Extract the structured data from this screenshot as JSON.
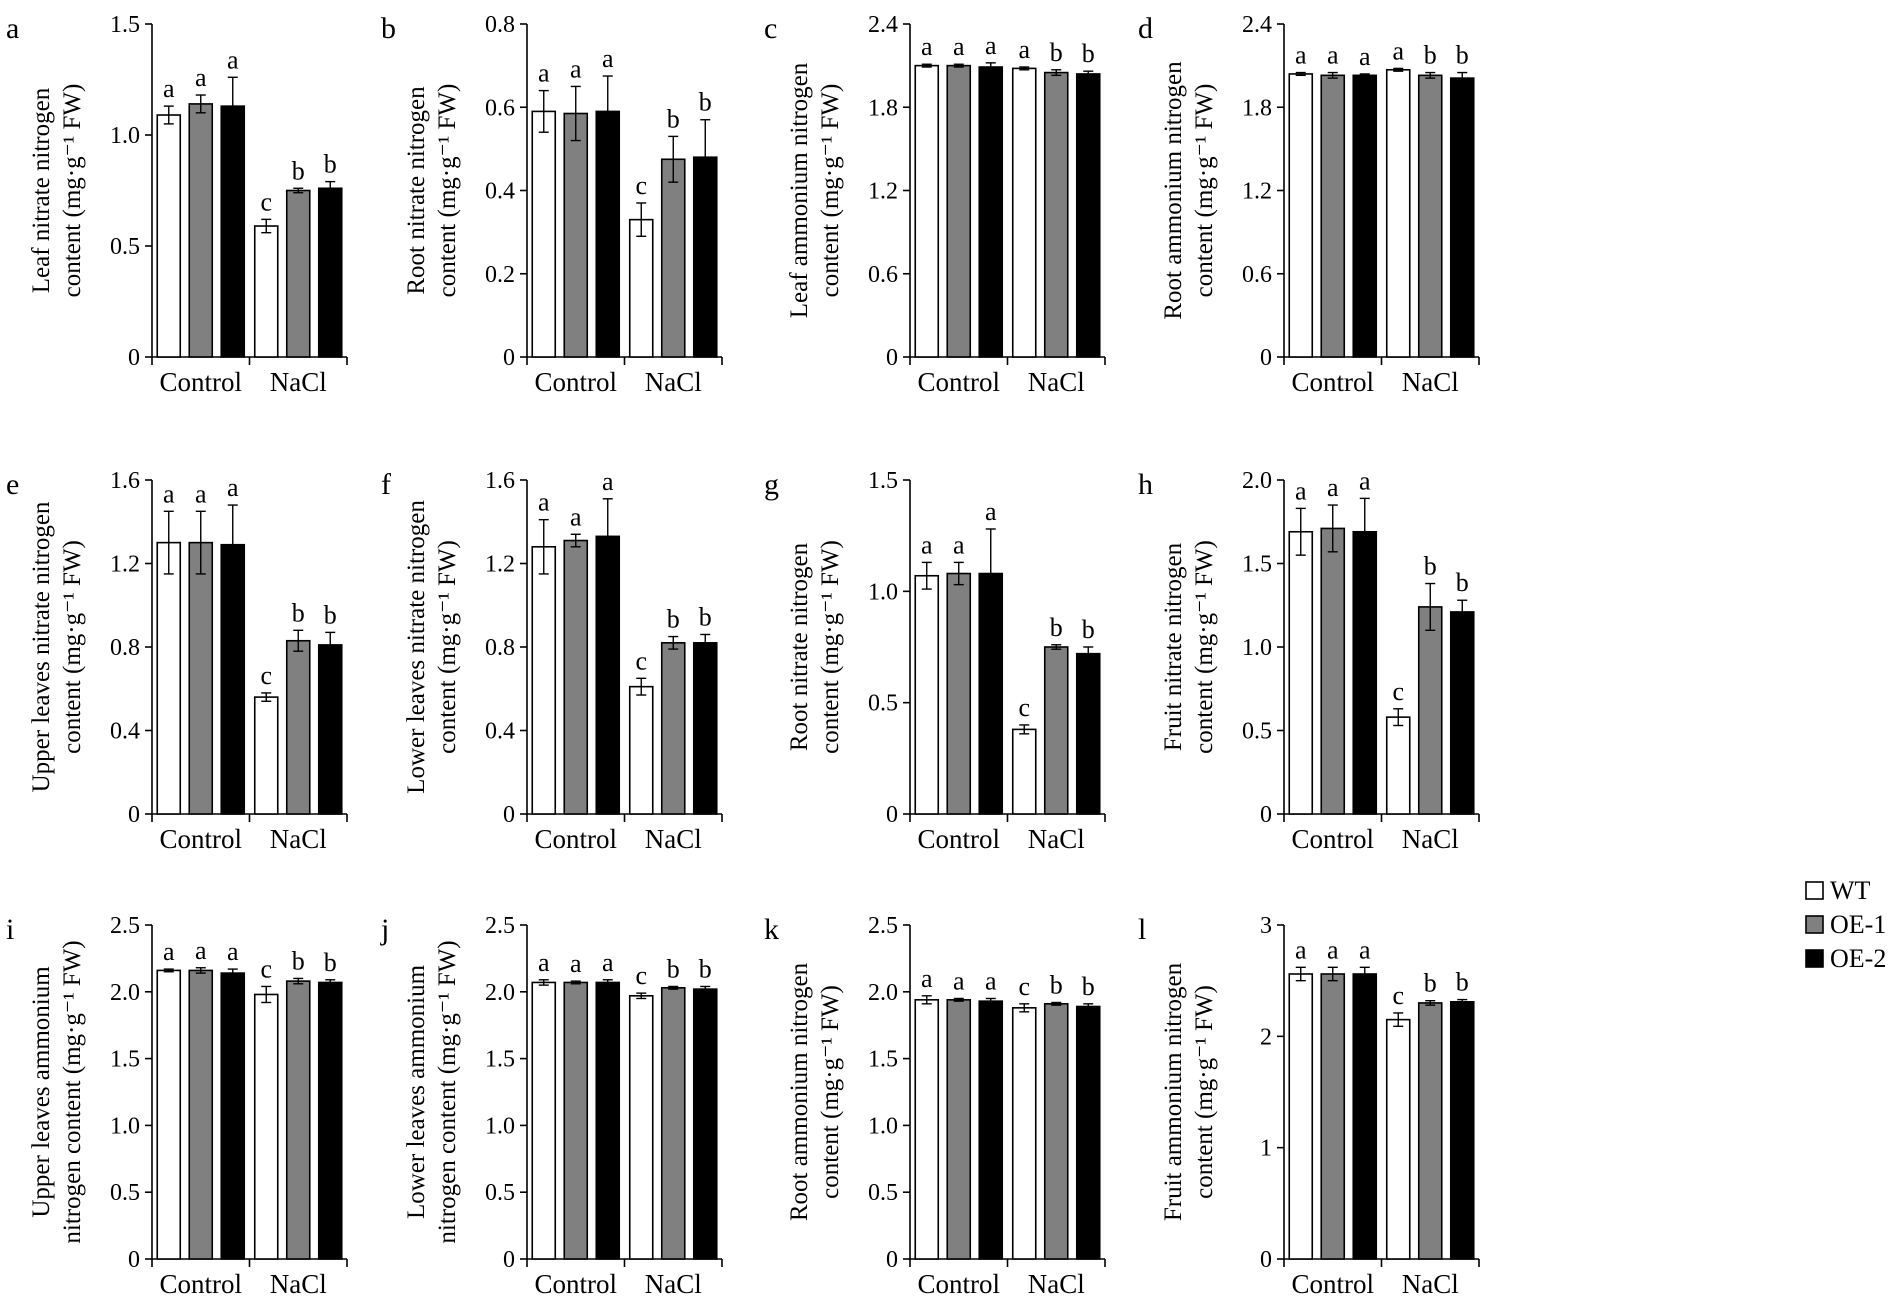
{
  "figure": {
    "legend": [
      {
        "label": "WT",
        "color": "#ffffff"
      },
      {
        "label": "OE-1",
        "color": "#808080"
      },
      {
        "label": "OE-2",
        "color": "#000000"
      }
    ]
  },
  "chart_data": [
    {
      "panel": "a",
      "type": "bar",
      "ylabel": [
        "Leaf nitrate nitrogen",
        "content (mg·g⁻¹ FW)"
      ],
      "ylim": [
        0,
        1.5
      ],
      "yticks": [
        "0",
        "0.5",
        "1.0",
        "1.5"
      ],
      "categories": [
        "Control",
        "NaCl"
      ],
      "series": [
        {
          "name": "WT",
          "values": [
            1.09,
            0.59
          ],
          "errors": [
            0.04,
            0.03
          ]
        },
        {
          "name": "OE-1",
          "values": [
            1.14,
            0.75
          ],
          "errors": [
            0.04,
            0.01
          ]
        },
        {
          "name": "OE-2",
          "values": [
            1.13,
            0.76
          ],
          "errors": [
            0.13,
            0.03
          ]
        }
      ],
      "letters": [
        [
          "a",
          "a",
          "a"
        ],
        [
          "c",
          "b",
          "b"
        ]
      ]
    },
    {
      "panel": "b",
      "type": "bar",
      "ylabel": [
        "Root nitrate nitrogen",
        "content (mg·g⁻¹ FW)"
      ],
      "ylim": [
        0,
        0.8
      ],
      "yticks": [
        "0",
        "0.2",
        "0.4",
        "0.6",
        "0.8"
      ],
      "categories": [
        "Control",
        "NaCl"
      ],
      "series": [
        {
          "name": "WT",
          "values": [
            0.59,
            0.33
          ],
          "errors": [
            0.05,
            0.04
          ]
        },
        {
          "name": "OE-1",
          "values": [
            0.585,
            0.475
          ],
          "errors": [
            0.065,
            0.055
          ]
        },
        {
          "name": "OE-2",
          "values": [
            0.59,
            0.48
          ],
          "errors": [
            0.085,
            0.09
          ]
        }
      ],
      "letters": [
        [
          "a",
          "a",
          "a"
        ],
        [
          "c",
          "b",
          "b"
        ]
      ]
    },
    {
      "panel": "c",
      "type": "bar",
      "ylabel": [
        "Leaf ammonium nitrogen",
        "content (mg·g⁻¹ FW)"
      ],
      "ylim": [
        0,
        2.4
      ],
      "yticks": [
        "0",
        "0.6",
        "1.2",
        "1.8",
        "2.4"
      ],
      "categories": [
        "Control",
        "NaCl"
      ],
      "series": [
        {
          "name": "WT",
          "values": [
            2.1,
            2.08
          ],
          "errors": [
            0.01,
            0.01
          ]
        },
        {
          "name": "OE-1",
          "values": [
            2.1,
            2.05
          ],
          "errors": [
            0.01,
            0.02
          ]
        },
        {
          "name": "OE-2",
          "values": [
            2.09,
            2.04
          ],
          "errors": [
            0.03,
            0.02
          ]
        }
      ],
      "letters": [
        [
          "a",
          "a",
          "a"
        ],
        [
          "a",
          "b",
          "b"
        ]
      ]
    },
    {
      "panel": "d",
      "type": "bar",
      "ylabel": [
        "Root ammonium nitrogen",
        "content (mg·g⁻¹ FW)"
      ],
      "ylim": [
        0,
        2.4
      ],
      "yticks": [
        "0",
        "0.6",
        "1.2",
        "1.8",
        "2.4"
      ],
      "categories": [
        "Control",
        "NaCl"
      ],
      "series": [
        {
          "name": "WT",
          "values": [
            2.04,
            2.07
          ],
          "errors": [
            0.01,
            0.01
          ]
        },
        {
          "name": "OE-1",
          "values": [
            2.03,
            2.03
          ],
          "errors": [
            0.02,
            0.02
          ]
        },
        {
          "name": "OE-2",
          "values": [
            2.03,
            2.01
          ],
          "errors": [
            0.01,
            0.04
          ]
        }
      ],
      "letters": [
        [
          "a",
          "a",
          "a"
        ],
        [
          "a",
          "b",
          "b"
        ]
      ]
    },
    {
      "panel": "e",
      "type": "bar",
      "ylabel": [
        "Upper leaves nitrate nitrogen",
        "content (mg·g⁻¹ FW)"
      ],
      "ylim": [
        0,
        1.6
      ],
      "yticks": [
        "0",
        "0.4",
        "0.8",
        "1.2",
        "1.6"
      ],
      "categories": [
        "Control",
        "NaCl"
      ],
      "series": [
        {
          "name": "WT",
          "values": [
            1.3,
            0.56
          ],
          "errors": [
            0.15,
            0.02
          ]
        },
        {
          "name": "OE-1",
          "values": [
            1.3,
            0.83
          ],
          "errors": [
            0.15,
            0.05
          ]
        },
        {
          "name": "OE-2",
          "values": [
            1.29,
            0.81
          ],
          "errors": [
            0.19,
            0.06
          ]
        }
      ],
      "letters": [
        [
          "a",
          "a",
          "a"
        ],
        [
          "c",
          "b",
          "b"
        ]
      ]
    },
    {
      "panel": "f",
      "type": "bar",
      "ylabel": [
        "Lower leaves nitrate nitrogen",
        "content (mg·g⁻¹ FW)"
      ],
      "ylim": [
        0,
        1.6
      ],
      "yticks": [
        "0",
        "0.4",
        "0.8",
        "1.2",
        "1.6"
      ],
      "categories": [
        "Control",
        "NaCl"
      ],
      "series": [
        {
          "name": "WT",
          "values": [
            1.28,
            0.61
          ],
          "errors": [
            0.13,
            0.04
          ]
        },
        {
          "name": "OE-1",
          "values": [
            1.31,
            0.82
          ],
          "errors": [
            0.03,
            0.03
          ]
        },
        {
          "name": "OE-2",
          "values": [
            1.33,
            0.82
          ],
          "errors": [
            0.18,
            0.04
          ]
        }
      ],
      "letters": [
        [
          "a",
          "a",
          "a"
        ],
        [
          "c",
          "b",
          "b"
        ]
      ]
    },
    {
      "panel": "g",
      "type": "bar",
      "ylabel": [
        "Root nitrate nitrogen",
        "content (mg·g⁻¹ FW)"
      ],
      "ylim": [
        0,
        1.5
      ],
      "yticks": [
        "0",
        "0.5",
        "1.0",
        "1.5"
      ],
      "categories": [
        "Control",
        "NaCl"
      ],
      "series": [
        {
          "name": "WT",
          "values": [
            1.07,
            0.38
          ],
          "errors": [
            0.06,
            0.02
          ]
        },
        {
          "name": "OE-1",
          "values": [
            1.08,
            0.75
          ],
          "errors": [
            0.05,
            0.01
          ]
        },
        {
          "name": "OE-2",
          "values": [
            1.08,
            0.72
          ],
          "errors": [
            0.2,
            0.03
          ]
        }
      ],
      "letters": [
        [
          "a",
          "a",
          "a"
        ],
        [
          "c",
          "b",
          "b"
        ]
      ]
    },
    {
      "panel": "h",
      "type": "bar",
      "ylabel": [
        "Fruit nitrate nitrogen",
        "content (mg·g⁻¹ FW)"
      ],
      "ylim": [
        0,
        2.0
      ],
      "yticks": [
        "0",
        "0.5",
        "1.0",
        "1.5",
        "2.0"
      ],
      "categories": [
        "Control",
        "NaCl"
      ],
      "series": [
        {
          "name": "WT",
          "values": [
            1.69,
            0.58
          ],
          "errors": [
            0.14,
            0.05
          ]
        },
        {
          "name": "OE-1",
          "values": [
            1.71,
            1.24
          ],
          "errors": [
            0.14,
            0.14
          ]
        },
        {
          "name": "OE-2",
          "values": [
            1.69,
            1.21
          ],
          "errors": [
            0.2,
            0.07
          ]
        }
      ],
      "letters": [
        [
          "a",
          "a",
          "a"
        ],
        [
          "c",
          "b",
          "b"
        ]
      ]
    },
    {
      "panel": "i",
      "type": "bar",
      "ylabel": [
        "Upper leaves ammonium",
        "nitrogen content (mg·g⁻¹ FW)"
      ],
      "ylim": [
        0,
        2.5
      ],
      "yticks": [
        "0",
        "0.5",
        "1.0",
        "1.5",
        "2.0",
        "2.5"
      ],
      "categories": [
        "Control",
        "NaCl"
      ],
      "series": [
        {
          "name": "WT",
          "values": [
            2.16,
            1.98
          ],
          "errors": [
            0.01,
            0.06
          ]
        },
        {
          "name": "OE-1",
          "values": [
            2.16,
            2.08
          ],
          "errors": [
            0.02,
            0.02
          ]
        },
        {
          "name": "OE-2",
          "values": [
            2.14,
            2.07
          ],
          "errors": [
            0.03,
            0.02
          ]
        }
      ],
      "letters": [
        [
          "a",
          "a",
          "a"
        ],
        [
          "c",
          "b",
          "b"
        ]
      ]
    },
    {
      "panel": "j",
      "type": "bar",
      "ylabel": [
        "Lower leaves ammonium",
        "nitrogen content (mg·g⁻¹ FW)"
      ],
      "ylim": [
        0,
        2.5
      ],
      "yticks": [
        "0",
        "0.5",
        "1.0",
        "1.5",
        "2.0",
        "2.5"
      ],
      "categories": [
        "Control",
        "NaCl"
      ],
      "series": [
        {
          "name": "WT",
          "values": [
            2.07,
            1.97
          ],
          "errors": [
            0.02,
            0.02
          ]
        },
        {
          "name": "OE-1",
          "values": [
            2.07,
            2.03
          ],
          "errors": [
            0.01,
            0.01
          ]
        },
        {
          "name": "OE-2",
          "values": [
            2.07,
            2.02
          ],
          "errors": [
            0.02,
            0.02
          ]
        }
      ],
      "letters": [
        [
          "a",
          "a",
          "a"
        ],
        [
          "c",
          "b",
          "b"
        ]
      ]
    },
    {
      "panel": "k",
      "type": "bar",
      "ylabel": [
        "Root ammonium nitrogen",
        "content (mg·g⁻¹ FW)"
      ],
      "ylim": [
        0,
        2.5
      ],
      "yticks": [
        "0",
        "0.5",
        "1.0",
        "1.5",
        "2.0",
        "2.5"
      ],
      "categories": [
        "Control",
        "NaCl"
      ],
      "series": [
        {
          "name": "WT",
          "values": [
            1.94,
            1.88
          ],
          "errors": [
            0.03,
            0.03
          ]
        },
        {
          "name": "OE-1",
          "values": [
            1.94,
            1.91
          ],
          "errors": [
            0.01,
            0.01
          ]
        },
        {
          "name": "OE-2",
          "values": [
            1.93,
            1.89
          ],
          "errors": [
            0.02,
            0.02
          ]
        }
      ],
      "letters": [
        [
          "a",
          "a",
          "a"
        ],
        [
          "c",
          "b",
          "b"
        ]
      ]
    },
    {
      "panel": "l",
      "type": "bar",
      "ylabel": [
        "Fruit ammonium nitrogen",
        "content (mg·g⁻¹ FW)"
      ],
      "ylim": [
        0,
        3
      ],
      "yticks": [
        "0",
        "1",
        "2",
        "3"
      ],
      "categories": [
        "Control",
        "NaCl"
      ],
      "series": [
        {
          "name": "WT",
          "values": [
            2.56,
            2.15
          ],
          "errors": [
            0.06,
            0.06
          ]
        },
        {
          "name": "OE-1",
          "values": [
            2.56,
            2.3
          ],
          "errors": [
            0.06,
            0.02
          ]
        },
        {
          "name": "OE-2",
          "values": [
            2.56,
            2.31
          ],
          "errors": [
            0.06,
            0.02
          ]
        }
      ],
      "letters": [
        [
          "a",
          "a",
          "a"
        ],
        [
          "c",
          "b",
          "b"
        ]
      ]
    }
  ]
}
